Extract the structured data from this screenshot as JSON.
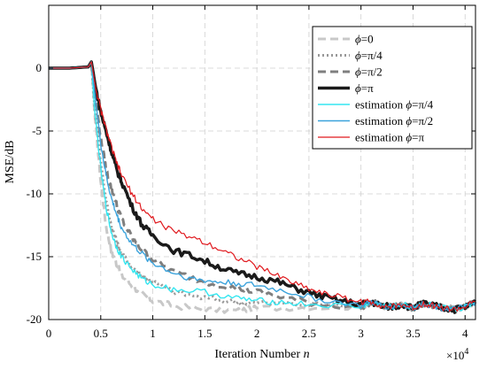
{
  "chart_data": {
    "type": "line",
    "xlabel": "Iteration Number n",
    "xlabel_prefix": "Iteration Number",
    "xlabel_var": "n",
    "ylabel": "MSE/dB",
    "x_multiplier": "×10",
    "x_multiplier_exp": "4",
    "xlim": [
      0,
      4.1
    ],
    "ylim": [
      -20,
      5
    ],
    "xticks": [
      0,
      0.5,
      1,
      1.5,
      2,
      2.5,
      3,
      3.5,
      4
    ],
    "xtick_labels": [
      "0",
      "0.5",
      "1",
      "1.5",
      "2",
      "2.5",
      "3",
      "3.5",
      "4"
    ],
    "yticks": [
      0,
      -5,
      -10,
      -15,
      -20
    ],
    "ytick_labels": [
      "0",
      "-5",
      "-10",
      "-15",
      "-20"
    ],
    "grid": true,
    "legend_position": "top-right",
    "series": [
      {
        "name": "ϕ=0",
        "color": "#c8c8c8",
        "style": "dashed",
        "width": 3,
        "x": [
          0,
          0.2,
          0.38,
          0.41,
          0.44,
          0.5,
          0.55,
          0.6,
          0.65,
          0.7,
          0.8,
          0.9,
          1.0,
          1.2,
          1.5,
          1.8,
          2.0,
          2.5,
          3.0
        ],
        "y": [
          0,
          0,
          0.1,
          0.5,
          -3.5,
          -9,
          -12.5,
          -14.5,
          -15.5,
          -16.5,
          -17.3,
          -18.0,
          -18.5,
          -18.9,
          -19.2,
          -19.3,
          -19.1,
          -19.0,
          -19.0
        ]
      },
      {
        "name": "ϕ=π/4",
        "color": "#999999",
        "style": "dotted",
        "width": 3,
        "x": [
          0,
          0.2,
          0.38,
          0.41,
          0.44,
          0.5,
          0.55,
          0.6,
          0.65,
          0.7,
          0.8,
          0.9,
          1.0,
          1.2,
          1.5,
          1.8,
          2.0,
          2.5,
          3.0
        ],
        "y": [
          0,
          0,
          0.1,
          0.5,
          -3,
          -7.5,
          -10.5,
          -12.5,
          -13.8,
          -14.8,
          -15.8,
          -16.5,
          -17.0,
          -17.8,
          -18.3,
          -18.6,
          -18.7,
          -18.8,
          -18.9
        ]
      },
      {
        "name": "ϕ=π/2",
        "color": "#7f7f7f",
        "style": "dashed",
        "width": 3,
        "x": [
          0,
          0.2,
          0.38,
          0.41,
          0.45,
          0.5,
          0.55,
          0.6,
          0.65,
          0.7,
          0.8,
          0.9,
          1.0,
          1.2,
          1.5,
          1.8,
          2.0,
          2.3,
          2.6,
          3.0
        ],
        "y": [
          0,
          0,
          0.1,
          0.5,
          -2.5,
          -5.5,
          -8.0,
          -9.5,
          -10.8,
          -12,
          -13.5,
          -14.5,
          -15.2,
          -16.2,
          -17.0,
          -17.5,
          -17.8,
          -18.3,
          -18.8,
          -19.0
        ]
      },
      {
        "name": "ϕ=π",
        "color": "#1a1a1a",
        "style": "solid",
        "width": 3.5,
        "x": [
          0,
          0.2,
          0.38,
          0.41,
          0.45,
          0.5,
          0.55,
          0.6,
          0.65,
          0.7,
          0.8,
          0.9,
          1.0,
          1.2,
          1.4,
          1.6,
          1.8,
          2.0,
          2.2,
          2.4,
          2.6,
          2.8,
          3.0
        ],
        "y": [
          0,
          0,
          0.1,
          0.5,
          -1.5,
          -3.5,
          -5,
          -6.5,
          -8,
          -9,
          -11,
          -12.5,
          -13.3,
          -14.5,
          -15.0,
          -15.7,
          -16.3,
          -16.6,
          -17.0,
          -17.6,
          -18.1,
          -18.5,
          -18.8
        ]
      },
      {
        "name": "estimation ϕ=π/4",
        "color": "#33e6f0",
        "style": "solid",
        "width": 1.4,
        "x": [
          0,
          0.2,
          0.38,
          0.41,
          0.44,
          0.5,
          0.55,
          0.6,
          0.65,
          0.7,
          0.8,
          0.9,
          1.0,
          1.2,
          1.5,
          1.8,
          2.0,
          2.2,
          2.5,
          3.0
        ],
        "y": [
          0,
          0,
          0.1,
          0.5,
          -3.2,
          -8,
          -11,
          -13,
          -14.2,
          -15.0,
          -16.0,
          -16.8,
          -17.2,
          -17.6,
          -17.8,
          -18.3,
          -18.5,
          -18.6,
          -18.8,
          -19.0
        ]
      },
      {
        "name": "estimation ϕ=π/2",
        "color": "#3ba3dc",
        "style": "solid",
        "width": 1.4,
        "x": [
          0,
          0.2,
          0.38,
          0.41,
          0.45,
          0.5,
          0.55,
          0.6,
          0.65,
          0.7,
          0.8,
          0.9,
          1.0,
          1.2,
          1.4,
          1.6,
          1.8,
          2.0,
          2.3,
          2.6,
          3.0
        ],
        "y": [
          0,
          0,
          0.1,
          0.5,
          -2.5,
          -6,
          -8.5,
          -10.3,
          -11.6,
          -12.7,
          -14.0,
          -14.8,
          -15.5,
          -16.3,
          -16.8,
          -17.0,
          -17.1,
          -17.3,
          -17.8,
          -18.4,
          -18.9
        ]
      },
      {
        "name": "estimation ϕ=π",
        "color": "#e0191e",
        "style": "solid",
        "width": 1.2,
        "x": [
          0,
          0.2,
          0.38,
          0.41,
          0.45,
          0.5,
          0.55,
          0.6,
          0.65,
          0.7,
          0.8,
          0.9,
          1.0,
          1.2,
          1.4,
          1.6,
          1.8,
          2.0,
          2.2,
          2.4,
          2.6,
          2.8,
          3.0
        ],
        "y": [
          0,
          0,
          0.1,
          0.5,
          -1.5,
          -3.3,
          -4.8,
          -6.2,
          -7.5,
          -8.5,
          -10.0,
          -11.2,
          -12.0,
          -13.0,
          -13.5,
          -14.2,
          -15.0,
          -15.8,
          -16.5,
          -17.2,
          -17.8,
          -18.2,
          -18.6
        ]
      }
    ],
    "tail": {
      "x": [
        3.0,
        3.1,
        3.2,
        3.3,
        3.4,
        3.5,
        3.6,
        3.7,
        3.8,
        3.9,
        4.0,
        4.1
      ],
      "y": [
        -19.0,
        -18.6,
        -18.9,
        -19.0,
        -18.8,
        -19.1,
        -18.7,
        -18.9,
        -19.1,
        -19.2,
        -19.0,
        -18.6
      ]
    },
    "legend": [
      {
        "prefix": "",
        "sym": "ϕ",
        "suffix": "=0",
        "series": 0
      },
      {
        "prefix": "",
        "sym": "ϕ",
        "suffix": "=π/4",
        "series": 1
      },
      {
        "prefix": "",
        "sym": "ϕ",
        "suffix": "=π/2",
        "series": 2
      },
      {
        "prefix": "",
        "sym": "ϕ",
        "suffix": "=π",
        "series": 3
      },
      {
        "prefix": "estimation ",
        "sym": "ϕ",
        "suffix": "=π/4",
        "series": 4
      },
      {
        "prefix": "estimation ",
        "sym": "ϕ",
        "suffix": "=π/2",
        "series": 5
      },
      {
        "prefix": "estimation ",
        "sym": "ϕ",
        "suffix": "=π",
        "series": 6
      }
    ]
  }
}
